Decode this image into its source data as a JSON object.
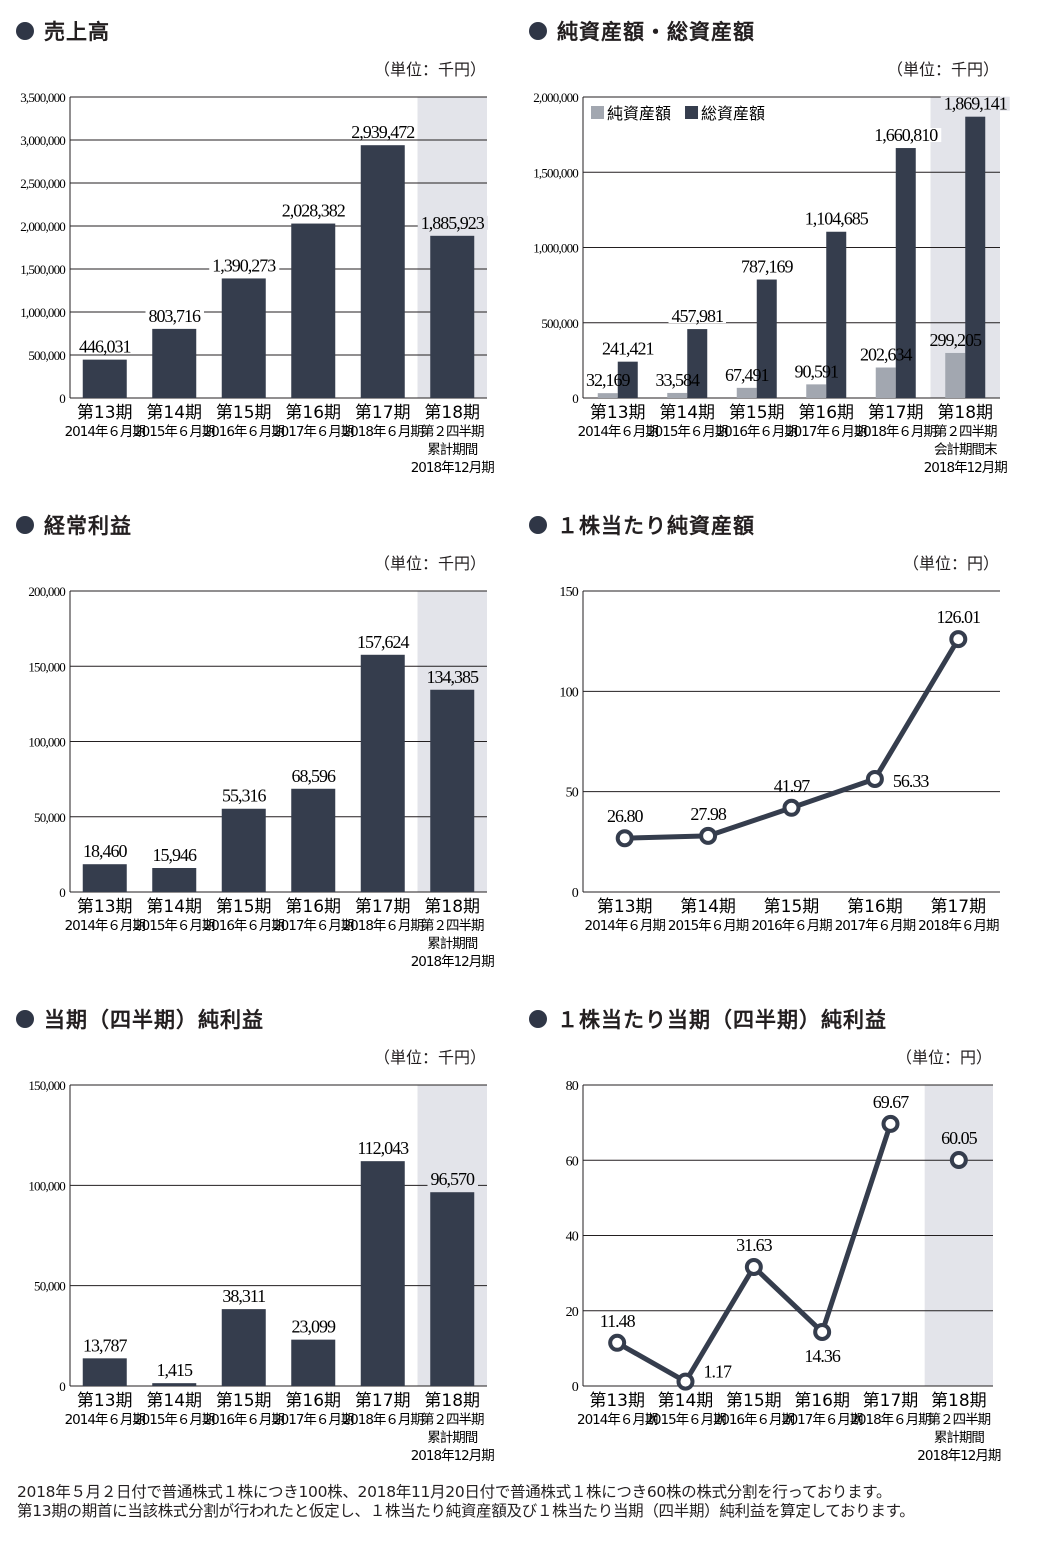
{
  "colors": {
    "dark": "#353d4d",
    "light": "#a2a7b0",
    "shade": "#e3e4ea",
    "grid": "#231f20"
  },
  "footnote": [
    "2018年５月２日付で普通株式１株につき100株、2018年11月20日付で普通株式１株につき60株の株式分割を行っております。",
    "第13期の期首に当該株式分割が行われたと仮定し、１株当たり純資産額及び１株当たり当期（四半期）純利益を算定しております。"
  ],
  "chart_data": [
    {
      "id": "sales",
      "type": "bar",
      "title": "売上高",
      "unit": "（単位：千円）",
      "ylim": [
        0,
        3500000
      ],
      "yticks": [
        0,
        500000,
        1000000,
        1500000,
        2000000,
        2500000,
        3000000,
        3500000
      ],
      "categories": [
        [
          "第13期",
          "2014年６月期"
        ],
        [
          "第14期",
          "2015年６月期"
        ],
        [
          "第15期",
          "2016年６月期"
        ],
        [
          "第16期",
          "2017年６月期"
        ],
        [
          "第17期",
          "2018年６月期"
        ],
        [
          "第18期",
          "第２四半期",
          "累計期間",
          "2018年12月期"
        ]
      ],
      "shade_last": true,
      "series": [
        {
          "name": "売上高",
          "color": "dark",
          "values": [
            446031,
            803716,
            1390273,
            2028382,
            2939472,
            1885923
          ]
        }
      ]
    },
    {
      "id": "assets",
      "type": "bar",
      "title": "純資産額・総資産額",
      "unit": "（単位：千円）",
      "ylim": [
        0,
        2000000
      ],
      "yticks": [
        0,
        500000,
        1000000,
        1500000,
        2000000
      ],
      "categories": [
        [
          "第13期",
          "2014年６月期"
        ],
        [
          "第14期",
          "2015年６月期"
        ],
        [
          "第15期",
          "2016年６月期"
        ],
        [
          "第16期",
          "2017年６月期"
        ],
        [
          "第17期",
          "2018年６月期"
        ],
        [
          "第18期",
          "第２四半期",
          "会計期間末",
          "2018年12月期"
        ]
      ],
      "shade_last": true,
      "legend": "top-left",
      "series": [
        {
          "name": "純資産額",
          "color": "light",
          "values": [
            32169,
            33584,
            67491,
            90591,
            202634,
            299205
          ]
        },
        {
          "name": "総資産額",
          "color": "dark",
          "values": [
            241421,
            457981,
            787169,
            1104685,
            1660810,
            1869141
          ]
        }
      ]
    },
    {
      "id": "ordinary",
      "type": "bar",
      "title": "経常利益",
      "unit": "（単位：千円）",
      "ylim": [
        0,
        200000
      ],
      "yticks": [
        0,
        50000,
        100000,
        150000,
        200000
      ],
      "categories": [
        [
          "第13期",
          "2014年６月期"
        ],
        [
          "第14期",
          "2015年６月期"
        ],
        [
          "第15期",
          "2016年６月期"
        ],
        [
          "第16期",
          "2017年６月期"
        ],
        [
          "第17期",
          "2018年６月期"
        ],
        [
          "第18期",
          "第２四半期",
          "累計期間",
          "2018年12月期"
        ]
      ],
      "shade_last": true,
      "series": [
        {
          "name": "経常利益",
          "color": "dark",
          "values": [
            18460,
            15946,
            55316,
            68596,
            157624,
            134385
          ]
        }
      ]
    },
    {
      "id": "bps",
      "type": "line",
      "title": "１株当たり純資産額",
      "unit": "（単位：円）",
      "ylim": [
        0,
        150
      ],
      "yticks": [
        0,
        50,
        100,
        150
      ],
      "categories": [
        [
          "第13期",
          "2014年６月期"
        ],
        [
          "第14期",
          "2015年６月期"
        ],
        [
          "第15期",
          "2016年６月期"
        ],
        [
          "第16期",
          "2017年６月期"
        ],
        [
          "第17期",
          "2018年６月期"
        ]
      ],
      "shade_last": false,
      "series": [
        {
          "name": "１株当たり純資産額",
          "values": [
            26.8,
            27.98,
            41.97,
            56.33,
            126.01
          ],
          "labels": [
            "26.80",
            "27.98",
            "41.97",
            "56.33",
            "126.01"
          ],
          "label_pos": [
            "above",
            "above",
            "above",
            "right",
            "above"
          ]
        }
      ]
    },
    {
      "id": "net",
      "type": "bar",
      "title": "当期（四半期）純利益",
      "unit": "（単位：千円）",
      "ylim": [
        0,
        150000
      ],
      "yticks": [
        0,
        50000,
        100000,
        150000
      ],
      "categories": [
        [
          "第13期",
          "2014年６月期"
        ],
        [
          "第14期",
          "2015年６月期"
        ],
        [
          "第15期",
          "2016年６月期"
        ],
        [
          "第16期",
          "2017年６月期"
        ],
        [
          "第17期",
          "2018年６月期"
        ],
        [
          "第18期",
          "第２四半期",
          "累計期間",
          "2018年12月期"
        ]
      ],
      "shade_last": true,
      "series": [
        {
          "name": "当期純利益",
          "color": "dark",
          "values": [
            13787,
            1415,
            38311,
            23099,
            112043,
            96570
          ]
        }
      ]
    },
    {
      "id": "eps",
      "type": "line",
      "title": "１株当たり当期（四半期）純利益",
      "unit": "（単位：円）",
      "ylim": [
        0,
        80
      ],
      "yticks": [
        0,
        20,
        40,
        60,
        80
      ],
      "categories": [
        [
          "第13期",
          "2014年６月期"
        ],
        [
          "第14期",
          "2015年６月期"
        ],
        [
          "第15期",
          "2016年６月期"
        ],
        [
          "第16期",
          "2017年６月期"
        ],
        [
          "第17期",
          "2018年６月期"
        ],
        [
          "第18期",
          "第２四半期",
          "累計期間",
          "2018年12月期"
        ]
      ],
      "shade_last": true,
      "series": [
        {
          "name": "１株当たり当期純利益",
          "values": [
            11.48,
            1.17,
            31.63,
            14.36,
            69.67,
            60.05
          ],
          "labels": [
            "11.48",
            "1.17",
            "31.63",
            "14.36",
            "69.67",
            "60.05"
          ],
          "label_pos": [
            "above",
            "below-right",
            "above",
            "below",
            "above",
            "above"
          ],
          "connect_count": 5
        }
      ]
    }
  ]
}
